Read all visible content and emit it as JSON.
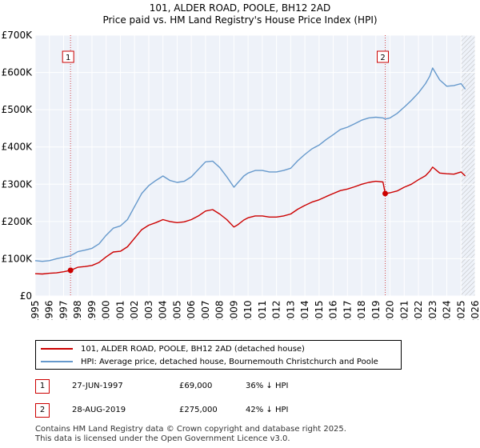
{
  "chart_data": {
    "type": "line",
    "title": "101, ALDER ROAD, POOLE, BH12 2AD",
    "subtitle": "Price paid vs. HM Land Registry's House Price Index (HPI)",
    "xlabel": "",
    "ylabel": "",
    "xlim": [
      1995,
      2026
    ],
    "ylim": [
      0,
      700000
    ],
    "x_ticks": [
      1995,
      1996,
      1997,
      1998,
      1999,
      2000,
      2001,
      2002,
      2003,
      2004,
      2005,
      2006,
      2007,
      2008,
      2009,
      2010,
      2011,
      2012,
      2013,
      2014,
      2015,
      2016,
      2017,
      2018,
      2019,
      2020,
      2021,
      2022,
      2023,
      2024,
      2025,
      2026
    ],
    "y_ticks": [
      {
        "value": 0,
        "label": "£0"
      },
      {
        "value": 100000,
        "label": "£100K"
      },
      {
        "value": 200000,
        "label": "£200K"
      },
      {
        "value": 300000,
        "label": "£300K"
      },
      {
        "value": 400000,
        "label": "£400K"
      },
      {
        "value": 500000,
        "label": "£500K"
      },
      {
        "value": 600000,
        "label": "£600K"
      },
      {
        "value": 700000,
        "label": "£700K"
      }
    ],
    "grid": true,
    "hatched_after": 2025.0,
    "series": [
      {
        "name": "101, ALDER ROAD, POOLE, BH12 2AD (detached house)",
        "color": "#cc0000",
        "x": [
          1995,
          1995.5,
          1996,
          1996.5,
          1997,
          1997.49,
          1998,
          1998.5,
          1999,
          1999.5,
          2000,
          2000.5,
          2001,
          2001.5,
          2002,
          2002.5,
          2003,
          2003.5,
          2004,
          2004.5,
          2005,
          2005.5,
          2006,
          2006.5,
          2007,
          2007.5,
          2008,
          2008.5,
          2009,
          2009.3,
          2009.7,
          2010,
          2010.5,
          2011,
          2011.5,
          2012,
          2012.5,
          2013,
          2013.5,
          2014,
          2014.5,
          2015,
          2015.5,
          2016,
          2016.5,
          2017,
          2017.5,
          2018,
          2018.5,
          2019,
          2019.5,
          2019.66,
          2020,
          2020.5,
          2021,
          2021.5,
          2022,
          2022.5,
          2022.8,
          2023,
          2023.5,
          2024,
          2024.5,
          2025,
          2025.3
        ],
        "y": [
          60000,
          59000,
          61000,
          62000,
          65000,
          69000,
          77000,
          79000,
          82000,
          90000,
          105000,
          118000,
          120000,
          132000,
          155000,
          178000,
          190000,
          197000,
          205000,
          200000,
          197000,
          199000,
          205000,
          215000,
          228000,
          232000,
          220000,
          205000,
          185000,
          192000,
          204000,
          210000,
          215000,
          215000,
          212000,
          212000,
          215000,
          220000,
          233000,
          243000,
          252000,
          258000,
          267000,
          275000,
          283000,
          287000,
          293000,
          300000,
          305000,
          308000,
          306000,
          275000,
          277000,
          282000,
          292000,
          300000,
          312000,
          323000,
          335000,
          346000,
          330000,
          328000,
          327000,
          333000,
          322000
        ]
      },
      {
        "name": "HPI: Average price, detached house, Bournemouth Christchurch and Poole",
        "color": "#6699cc",
        "x": [
          1995,
          1995.5,
          1996,
          1996.5,
          1997,
          1997.49,
          1998,
          1998.5,
          1999,
          1999.5,
          2000,
          2000.5,
          2001,
          2001.5,
          2002,
          2002.5,
          2003,
          2003.5,
          2004,
          2004.5,
          2005,
          2005.5,
          2006,
          2006.5,
          2007,
          2007.5,
          2008,
          2008.5,
          2009,
          2009.3,
          2009.7,
          2010,
          2010.5,
          2011,
          2011.5,
          2012,
          2012.5,
          2013,
          2013.5,
          2014,
          2014.5,
          2015,
          2015.5,
          2016,
          2016.5,
          2017,
          2017.5,
          2018,
          2018.5,
          2019,
          2019.5,
          2019.66,
          2020,
          2020.5,
          2021,
          2021.5,
          2022,
          2022.5,
          2022.8,
          2023,
          2023.5,
          2024,
          2024.5,
          2025,
          2025.3
        ],
        "y": [
          95000,
          93000,
          95000,
          100000,
          104000,
          108000,
          119000,
          123000,
          128000,
          140000,
          163000,
          182000,
          188000,
          205000,
          240000,
          275000,
          296000,
          310000,
          322000,
          310000,
          305000,
          308000,
          320000,
          340000,
          360000,
          362000,
          345000,
          320000,
          292000,
          305000,
          322000,
          330000,
          337000,
          337000,
          333000,
          333000,
          337000,
          343000,
          363000,
          380000,
          395000,
          405000,
          420000,
          433000,
          447000,
          453000,
          462000,
          472000,
          478000,
          480000,
          478000,
          475000,
          478000,
          490000,
          507000,
          525000,
          545000,
          570000,
          590000,
          612000,
          580000,
          563000,
          565000,
          570000,
          555000
        ]
      }
    ],
    "sales": [
      {
        "label": "1",
        "x": 1997.49,
        "y": 69000
      },
      {
        "label": "2",
        "x": 2019.66,
        "y": 275000
      }
    ]
  },
  "legend": {
    "red_label": "101, ALDER ROAD, POOLE, BH12 2AD (detached house)",
    "blue_label": "HPI: Average price, detached house, Bournemouth Christchurch and Poole"
  },
  "sales_table": [
    {
      "num": "1",
      "date": "27-JUN-1997",
      "price": "£69,000",
      "hpi": "36% ↓ HPI"
    },
    {
      "num": "2",
      "date": "28-AUG-2019",
      "price": "£275,000",
      "hpi": "42% ↓ HPI"
    }
  ],
  "footer": {
    "line1": "Contains HM Land Registry data © Crown copyright and database right 2025.",
    "line2": "This data is licensed under the Open Government Licence v3.0."
  },
  "colors": {
    "red": "#cc0000",
    "blue": "#6699cc",
    "plot_bg": "#eef2f9",
    "grid": "#ffffff"
  }
}
